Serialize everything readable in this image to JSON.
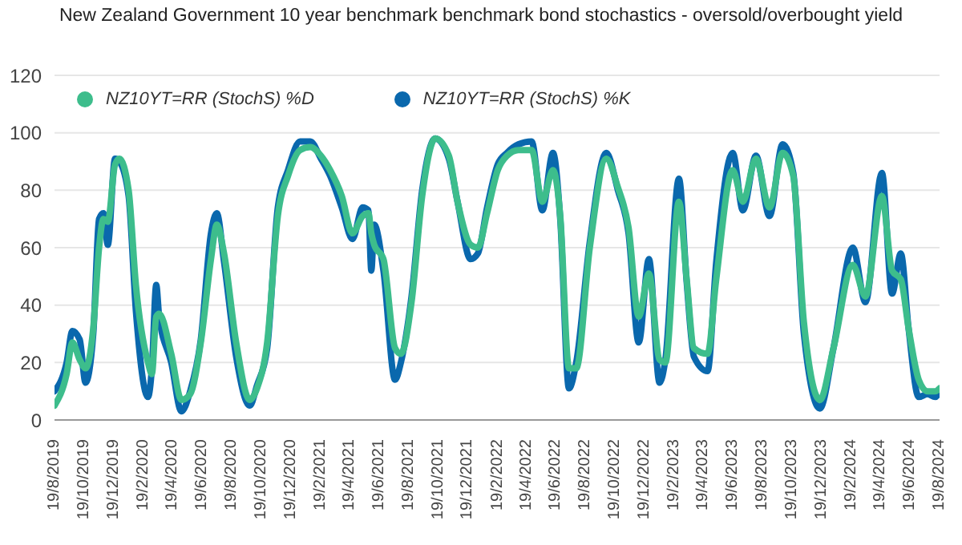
{
  "chart_data": {
    "type": "line",
    "title": "New Zealand Government 10 year benchmark benchmark bond stochastics -  oversold/overbought yield",
    "x": [
      "2019-08-19",
      "2019-09-13",
      "2019-09-25",
      "2019-10-10",
      "2019-10-22",
      "2019-11-07",
      "2019-11-19",
      "2019-11-28",
      "2019-12-07",
      "2019-12-22",
      "2019-12-31",
      "2020-01-19",
      "2020-02-03",
      "2020-02-28",
      "2020-03-07",
      "2020-03-16",
      "2020-03-22",
      "2020-04-16",
      "2020-05-07",
      "2020-05-25",
      "2020-06-16",
      "2020-07-07",
      "2020-07-19",
      "2020-08-03",
      "2020-08-28",
      "2020-09-25",
      "2020-10-10",
      "2020-10-31",
      "2020-11-22",
      "2020-12-13",
      "2021-01-07",
      "2021-01-28",
      "2021-02-19",
      "2021-03-10",
      "2021-04-03",
      "2021-04-25",
      "2021-05-16",
      "2021-05-28",
      "2021-06-03",
      "2021-06-09",
      "2021-06-28",
      "2021-07-22",
      "2021-08-03",
      "2021-08-25",
      "2021-09-16",
      "2021-10-13",
      "2021-11-10",
      "2021-11-28",
      "2021-12-25",
      "2022-01-09",
      "2022-01-28",
      "2022-02-19",
      "2022-03-10",
      "2022-04-03",
      "2022-04-30",
      "2022-05-22",
      "2022-06-13",
      "2022-06-28",
      "2022-07-16",
      "2022-07-31",
      "2022-08-28",
      "2022-10-01",
      "2022-10-25",
      "2022-11-16",
      "2022-12-07",
      "2022-12-28",
      "2023-01-19",
      "2023-01-31",
      "2023-02-28",
      "2023-03-16",
      "2023-03-31",
      "2023-04-28",
      "2023-05-16",
      "2023-06-19",
      "2023-07-10",
      "2023-08-06",
      "2023-09-03",
      "2023-09-30",
      "2023-10-22",
      "2023-11-13",
      "2023-12-16",
      "2024-01-13",
      "2024-02-22",
      "2024-03-19",
      "2024-04-22",
      "2024-05-13",
      "2024-05-31",
      "2024-06-16",
      "2024-07-07",
      "2024-07-25",
      "2024-08-10",
      "2024-08-19"
    ],
    "series": [
      {
        "name": "NZ10YT=RR (StochS) %D",
        "color": "#3dbd8c",
        "values": [
          5,
          16,
          27,
          21,
          18,
          32,
          60,
          70,
          69,
          89,
          91,
          80,
          47,
          20,
          16,
          36,
          37,
          23,
          7,
          9,
          27,
          56,
          68,
          58,
          27,
          7,
          11,
          27,
          71,
          85,
          94,
          95,
          92,
          87,
          78,
          65,
          71,
          72,
          65,
          61,
          56,
          25,
          23,
          41,
          78,
          98,
          92,
          76,
          61,
          60,
          72,
          87,
          92,
          94,
          94,
          76,
          87,
          71,
          18,
          18,
          60,
          91,
          81,
          67,
          36,
          51,
          21,
          20,
          76,
          49,
          25,
          23,
          49,
          87,
          76,
          91,
          74,
          93,
          85,
          34,
          7,
          25,
          54,
          43,
          78,
          52,
          49,
          32,
          14,
          10,
          10,
          11
        ]
      },
      {
        "name": "NZ10YT=RR (StochS) %K",
        "color": "#0a68ad",
        "values": [
          10,
          20,
          31,
          28,
          13,
          30,
          70,
          72,
          61,
          91,
          90,
          78,
          38,
          8,
          18,
          47,
          36,
          20,
          3,
          10,
          28,
          65,
          72,
          55,
          22,
          5,
          12,
          25,
          74,
          87,
          97,
          97,
          91,
          85,
          74,
          63,
          74,
          73,
          52,
          68,
          52,
          14,
          20,
          43,
          80,
          98,
          91,
          76,
          56,
          58,
          74,
          89,
          93,
          96,
          97,
          73,
          93,
          70,
          11,
          20,
          62,
          93,
          80,
          65,
          27,
          56,
          13,
          21,
          84,
          48,
          22,
          17,
          55,
          93,
          73,
          92,
          71,
          96,
          86,
          30,
          4,
          25,
          60,
          41,
          86,
          44,
          58,
          32,
          8,
          9,
          8,
          10
        ]
      }
    ],
    "xlim": [
      "2019-08-19",
      "2024-08-19"
    ],
    "xticks": [
      {
        "value": "2019-08-19",
        "label": "19/8/2019"
      },
      {
        "value": "2019-10-19",
        "label": "19/10/2019"
      },
      {
        "value": "2019-12-19",
        "label": "19/12/2019"
      },
      {
        "value": "2020-02-19",
        "label": "19/2/2020"
      },
      {
        "value": "2020-04-19",
        "label": "19/4/2020"
      },
      {
        "value": "2020-06-19",
        "label": "19/6/2020"
      },
      {
        "value": "2020-08-19",
        "label": "19/8/2020"
      },
      {
        "value": "2020-10-19",
        "label": "19/10/2020"
      },
      {
        "value": "2020-12-19",
        "label": "19/12/2020"
      },
      {
        "value": "2021-02-19",
        "label": "19/2/2021"
      },
      {
        "value": "2021-04-19",
        "label": "19/4/2021"
      },
      {
        "value": "2021-06-19",
        "label": "19/6/2021"
      },
      {
        "value": "2021-08-19",
        "label": "19/8/2021"
      },
      {
        "value": "2021-10-19",
        "label": "19/10/2021"
      },
      {
        "value": "2021-12-19",
        "label": "19/12/2021"
      },
      {
        "value": "2022-02-19",
        "label": "19/2/2022"
      },
      {
        "value": "2022-04-19",
        "label": "19/4/2022"
      },
      {
        "value": "2022-06-19",
        "label": "19/6/2022"
      },
      {
        "value": "2022-08-19",
        "label": "19/8/2022"
      },
      {
        "value": "2022-10-19",
        "label": "19/10/2022"
      },
      {
        "value": "2022-12-19",
        "label": "19/12/2022"
      },
      {
        "value": "2023-02-19",
        "label": "19/2/2023"
      },
      {
        "value": "2023-04-19",
        "label": "19/4/2023"
      },
      {
        "value": "2023-06-19",
        "label": "19/6/2023"
      },
      {
        "value": "2023-08-19",
        "label": "19/8/2023"
      },
      {
        "value": "2023-10-19",
        "label": "19/10/2023"
      },
      {
        "value": "2023-12-19",
        "label": "19/12/2023"
      },
      {
        "value": "2024-02-19",
        "label": "19/2/2024"
      },
      {
        "value": "2024-04-19",
        "label": "19/4/2024"
      },
      {
        "value": "2024-06-19",
        "label": "19/6/2024"
      },
      {
        "value": "2024-08-19",
        "label": "19/8/2024"
      }
    ],
    "ylim": [
      0,
      120
    ],
    "yticks": [
      0,
      20,
      40,
      60,
      80,
      100,
      120
    ],
    "grid": "y",
    "legend": "top left",
    "marker": "none",
    "line_style": "solid"
  }
}
